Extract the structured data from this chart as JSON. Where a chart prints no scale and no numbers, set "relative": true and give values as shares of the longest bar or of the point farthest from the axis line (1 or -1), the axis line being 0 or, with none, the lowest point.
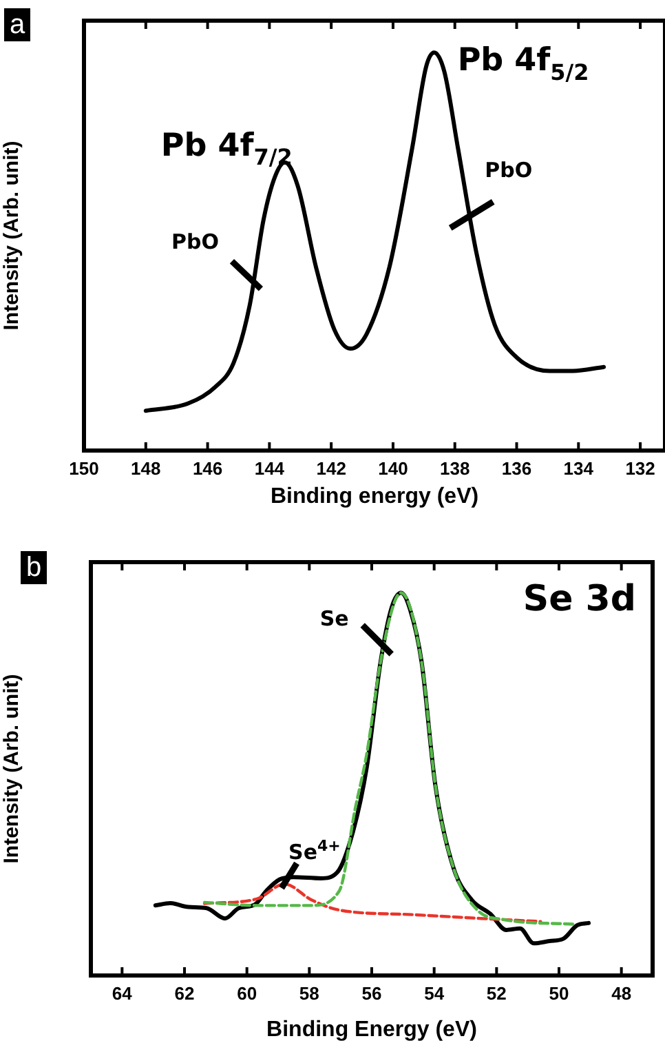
{
  "chart_data": [
    {
      "type": "line",
      "title": "a",
      "xlabel": "Binding energy (eV)",
      "ylabel": "Intensity (Arb. unit)",
      "relative": true,
      "xlim": [
        150,
        131.2
      ],
      "xticks": [
        150,
        148,
        146,
        144,
        142,
        140,
        138,
        136,
        134,
        132
      ],
      "grid": false,
      "legend": false,
      "marker": "none",
      "line_style": "solid",
      "series": [
        {
          "color": "#000000",
          "x": [
            148,
            146.64,
            145.75,
            145.16,
            144.64,
            144.19,
            143.82,
            143.5,
            143.08,
            142.49,
            141.9,
            141.38,
            140.86,
            140.12,
            139.38,
            138.93,
            138.67,
            138.34,
            137.9,
            137.3,
            136.71,
            135.97,
            134.93,
            134.19,
            133.18
          ],
          "values": [
            0.1,
            0.118,
            0.16,
            0.22,
            0.364,
            0.58,
            0.688,
            0.724,
            0.664,
            0.46,
            0.304,
            0.256,
            0.292,
            0.46,
            0.76,
            0.964,
            1.0,
            0.952,
            0.76,
            0.496,
            0.316,
            0.232,
            0.2,
            0.2,
            0.21
          ]
        }
      ],
      "annotations": [
        {
          "text": "Pb 4f$_{7/2}$",
          "x": 143.5,
          "y": 0.724
        },
        {
          "text": "Pb 4f$_{5/2}$",
          "x": 138.67,
          "y": 1.0
        },
        {
          "text": "PbO",
          "x": 144.5,
          "y": 0.42
        },
        {
          "text": "PbO",
          "x": 137.7,
          "y": 0.58
        }
      ]
    },
    {
      "type": "line",
      "title": "b",
      "xlabel": "Binding Energy (eV)",
      "ylabel": "Intensity (Arb. unit)",
      "relative": true,
      "xlim": [
        65,
        47
      ],
      "xticks": [
        64,
        62,
        60,
        58,
        56,
        54,
        52,
        50,
        48
      ],
      "grid": false,
      "legend": false,
      "marker": "none",
      "series": [
        {
          "color": "#55b848",
          "line_style": "dashed",
          "x": [
            61.36,
            59.68,
            57.92,
            57.04,
            56.53,
            56.16,
            55.72,
            55.28,
            55.06,
            54.4,
            53.96,
            53.38,
            52.64,
            51.76,
            49.56
          ],
          "values": [
            0.191,
            0.183,
            0.183,
            0.221,
            0.436,
            0.579,
            0.818,
            0.974,
            1.0,
            0.818,
            0.496,
            0.281,
            0.173,
            0.146,
            0.134
          ]
        },
        {
          "color": "#e8352a",
          "line_style": "dashed",
          "x": [
            61.36,
            59.68,
            58.8,
            57.92,
            57.04,
            54.7,
            52.5,
            50.59
          ],
          "values": [
            0.188,
            0.2,
            0.239,
            0.197,
            0.171,
            0.159,
            0.149,
            0.141
          ]
        },
        {
          "color": "#000000",
          "line_style": "solid",
          "x": [
            62.93,
            62.46,
            61.88,
            61.29,
            60.7,
            60.26,
            59.75,
            59.38,
            58.95,
            58.51,
            57.63,
            57.11,
            56.6,
            56.16,
            55.72,
            55.36,
            55.06,
            54.77,
            54.4,
            53.96,
            53.38,
            52.79,
            52.2,
            51.69,
            51.25,
            50.81,
            50.3,
            49.86,
            49.42,
            49.05
          ],
          "values": [
            0.183,
            0.189,
            0.179,
            0.176,
            0.149,
            0.176,
            0.185,
            0.221,
            0.251,
            0.257,
            0.254,
            0.269,
            0.376,
            0.544,
            0.818,
            0.962,
            1.0,
            0.956,
            0.818,
            0.496,
            0.281,
            0.197,
            0.161,
            0.119,
            0.123,
            0.084,
            0.09,
            0.096,
            0.131,
            0.137
          ]
        }
      ],
      "annotations": [
        "Se 3d",
        {
          "text": "Se",
          "x": 55.72,
          "y": 0.818
        },
        {
          "text": "Se$^{4+}$",
          "x": 58.8,
          "y": 0.25
        }
      ]
    }
  ]
}
